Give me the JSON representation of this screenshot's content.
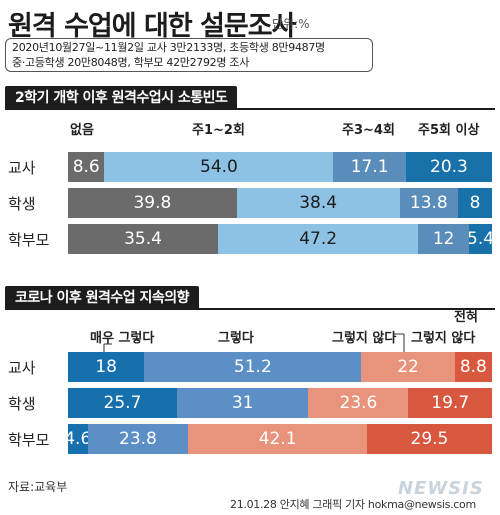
{
  "header": {
    "title": "원격 수업에 대한 설문조사",
    "unit": "단위:%",
    "info_line1": "2020년10월27일~11월2일 교사 3만2133명, 초등학생 8만9487명",
    "info_line2": "중·고등학생 20만8048명, 학부모 42만2792명 조사"
  },
  "footer": {
    "source": "자료:교육부",
    "credit": "21.01.28 안지혜 그래픽 기자 hokma@newsis.com",
    "watermark": "NEWSIS"
  },
  "chart_data": [
    {
      "type": "bar",
      "stacked": true,
      "orientation": "horizontal",
      "title": "2학기 개학 이후 원격수업시 소통빈도",
      "categories": [
        "교사",
        "학생",
        "학부모"
      ],
      "series": [
        {
          "name": "없음",
          "color": "#6b6b6b",
          "values": [
            8.6,
            39.8,
            35.4
          ]
        },
        {
          "name": "주1~2회",
          "color": "#8ec2e4",
          "values": [
            54.0,
            38.4,
            47.2
          ]
        },
        {
          "name": "주3~4회",
          "color": "#5b8dbb",
          "values": [
            17.1,
            13.8,
            12
          ]
        },
        {
          "name": "주5회 이상",
          "color": "#1871a9",
          "values": [
            20.3,
            8,
            5.4
          ]
        }
      ],
      "labels": [
        [
          "8.6",
          "54.0",
          "17.1",
          "20.3"
        ],
        [
          "39.8",
          "38.4",
          "13.8",
          "8"
        ],
        [
          "35.4",
          "47.2",
          "12",
          "5.4"
        ]
      ]
    },
    {
      "type": "bar",
      "stacked": true,
      "orientation": "horizontal",
      "title": "코로나 이후 원격수업 지속의향",
      "categories": [
        "교사",
        "학생",
        "학부모"
      ],
      "series": [
        {
          "name": "매우 그렇다",
          "color": "#1570ad",
          "values": [
            18,
            25.7,
            4.6
          ]
        },
        {
          "name": "그렇다",
          "color": "#5b8fc6",
          "values": [
            51.2,
            31,
            23.8
          ]
        },
        {
          "name": "그렇지 않다",
          "color": "#e8937c",
          "values": [
            22,
            23.6,
            42.1
          ]
        },
        {
          "name": "전혀 그렇지 않다",
          "color": "#d8573f",
          "values": [
            8.8,
            19.7,
            29.5
          ]
        }
      ],
      "labels": [
        [
          "18",
          "51.2",
          "22",
          "8.8"
        ],
        [
          "25.7",
          "31",
          "23.6",
          "19.7"
        ],
        [
          "4.6",
          "23.8",
          "42.1",
          "29.5"
        ]
      ],
      "legend_line1_last": "전혀",
      "legend_line2_last": "그렇지  않다"
    }
  ]
}
